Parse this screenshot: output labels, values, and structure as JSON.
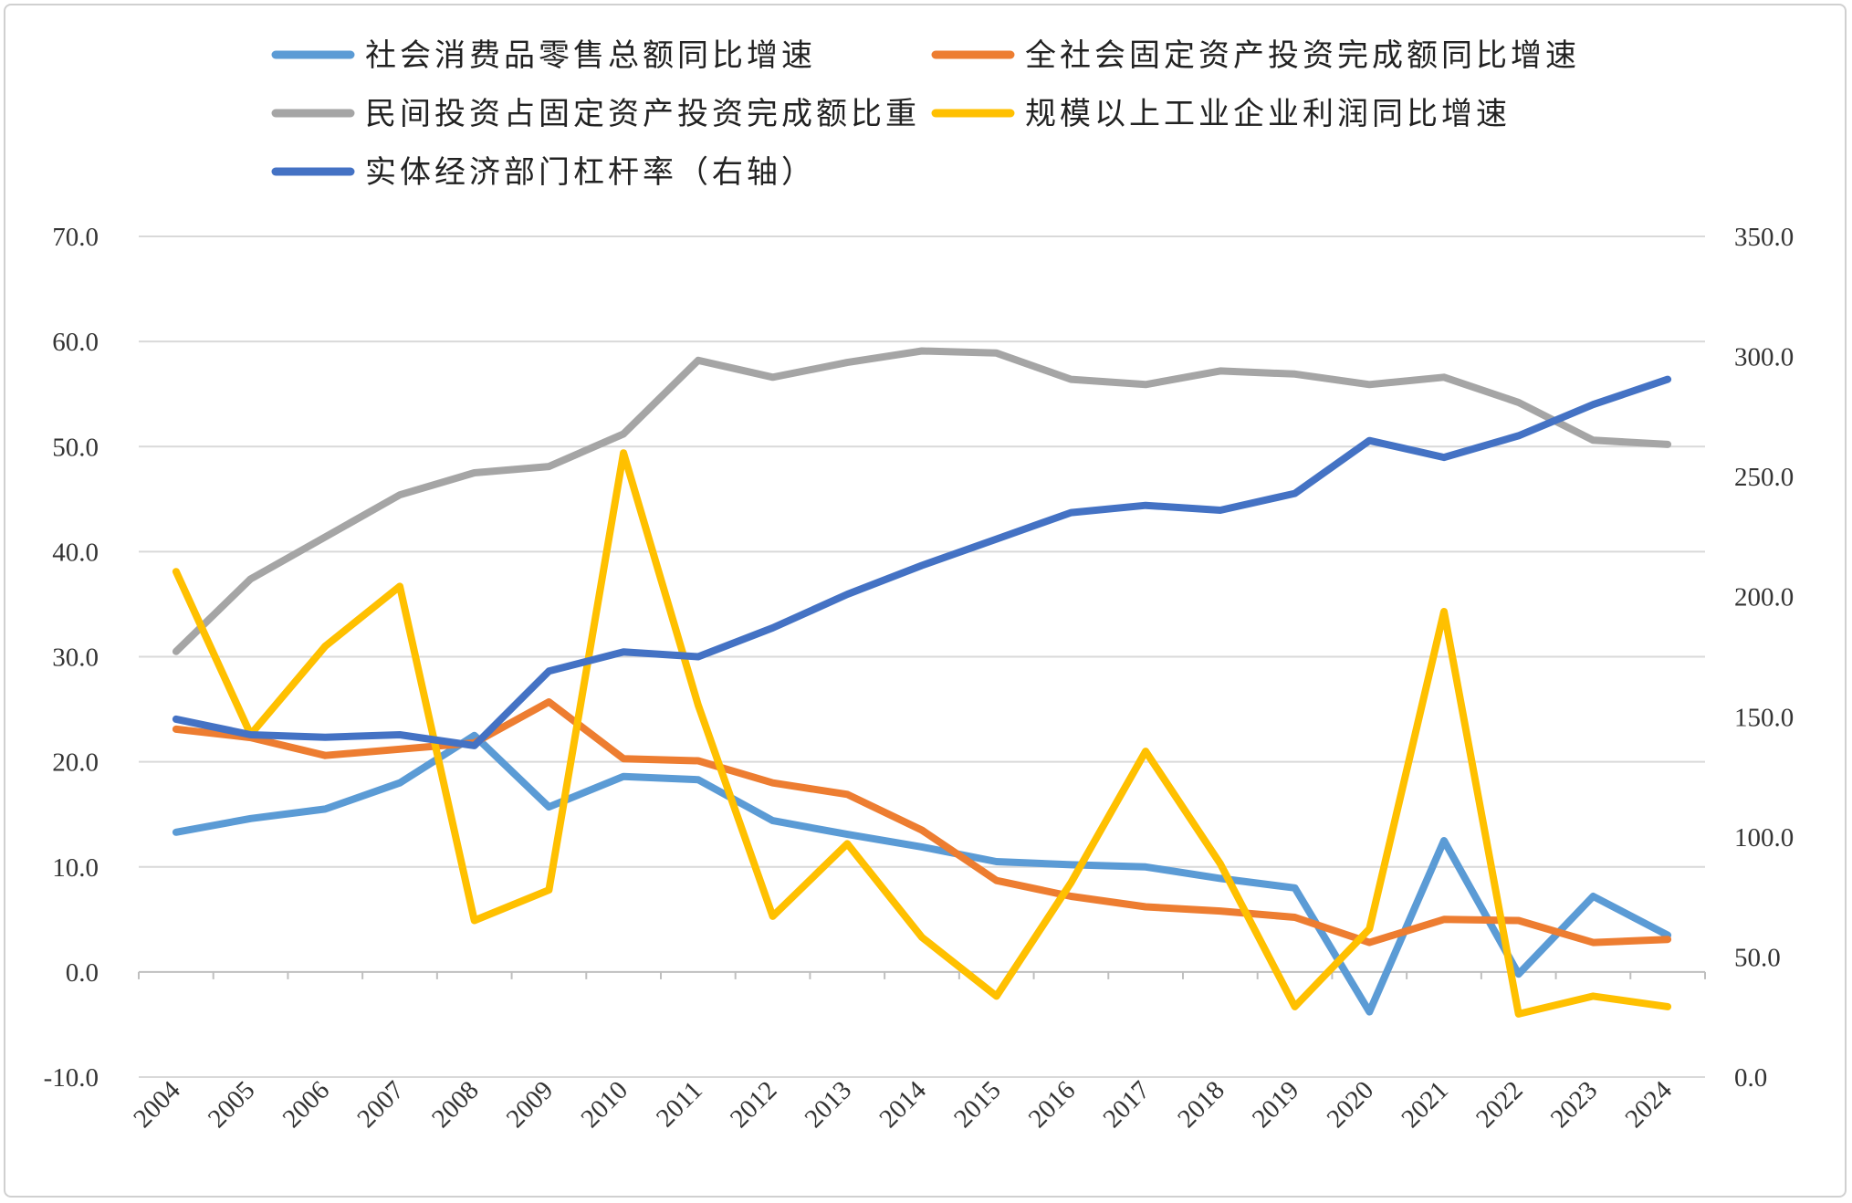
{
  "chart_data": {
    "type": "line",
    "categories": [
      "2004",
      "2005",
      "2006",
      "2007",
      "2008",
      "2009",
      "2010",
      "2011",
      "2012",
      "2013",
      "2014",
      "2015",
      "2016",
      "2017",
      "2018",
      "2019",
      "2020",
      "2021",
      "2022",
      "2023",
      "2024"
    ],
    "y_left": {
      "min": -10,
      "max": 70,
      "step": 10,
      "tick_labels": [
        "-10.0",
        "0.0",
        "10.0",
        "20.0",
        "30.0",
        "40.0",
        "50.0",
        "60.0",
        "70.0"
      ]
    },
    "y_right": {
      "min": 0,
      "max": 350,
      "step": 50,
      "tick_labels": [
        "0.0",
        "50.0",
        "100.0",
        "150.0",
        "200.0",
        "250.0",
        "300.0",
        "350.0"
      ]
    },
    "grid": true,
    "legend_position": "top",
    "series": [
      {
        "name": "社会消费品零售总额同比增速",
        "axis": "left",
        "color": "#5B9BD5",
        "values": [
          13.3,
          14.6,
          15.5,
          18.0,
          22.5,
          15.7,
          18.6,
          18.3,
          14.4,
          13.1,
          11.9,
          10.5,
          10.2,
          10.0,
          8.9,
          8.0,
          -3.8,
          12.5,
          -0.2,
          7.2,
          3.5
        ]
      },
      {
        "name": "全社会固定资产投资完成额同比增速",
        "axis": "left",
        "color": "#ED7D31",
        "values": [
          23.1,
          22.3,
          20.6,
          21.2,
          21.8,
          25.7,
          20.3,
          20.1,
          18.0,
          16.9,
          13.5,
          8.7,
          7.2,
          6.2,
          5.8,
          5.2,
          2.8,
          5.0,
          4.9,
          2.8,
          3.1
        ]
      },
      {
        "name": "民间投资占固定资产投资完成额比重",
        "axis": "left",
        "color": "#A5A5A5",
        "values": [
          30.5,
          37.4,
          41.4,
          45.4,
          47.5,
          48.1,
          51.2,
          58.2,
          56.6,
          58.0,
          59.1,
          58.9,
          56.4,
          55.9,
          57.2,
          56.9,
          55.9,
          56.6,
          54.2,
          50.6,
          50.2
        ]
      },
      {
        "name": "规模以上工业企业利润同比增速",
        "axis": "left",
        "color": "#FFC000",
        "values": [
          38.1,
          22.6,
          31.0,
          36.7,
          4.9,
          7.8,
          49.4,
          25.4,
          5.3,
          12.2,
          3.3,
          -2.3,
          8.5,
          21.0,
          10.3,
          -3.3,
          4.1,
          34.3,
          -4.0,
          -2.3,
          -3.3
        ]
      },
      {
        "name": "实体经济部门杠杆率（右轴）",
        "axis": "right",
        "color": "#4472C4",
        "values": [
          149.0,
          142.5,
          141.5,
          142.5,
          138.0,
          169.0,
          177.0,
          175.0,
          187.0,
          201.0,
          213.0,
          224.0,
          235.0,
          238.0,
          236.0,
          243.0,
          265.0,
          258.0,
          267.0,
          280.0,
          290.5
        ]
      }
    ]
  }
}
